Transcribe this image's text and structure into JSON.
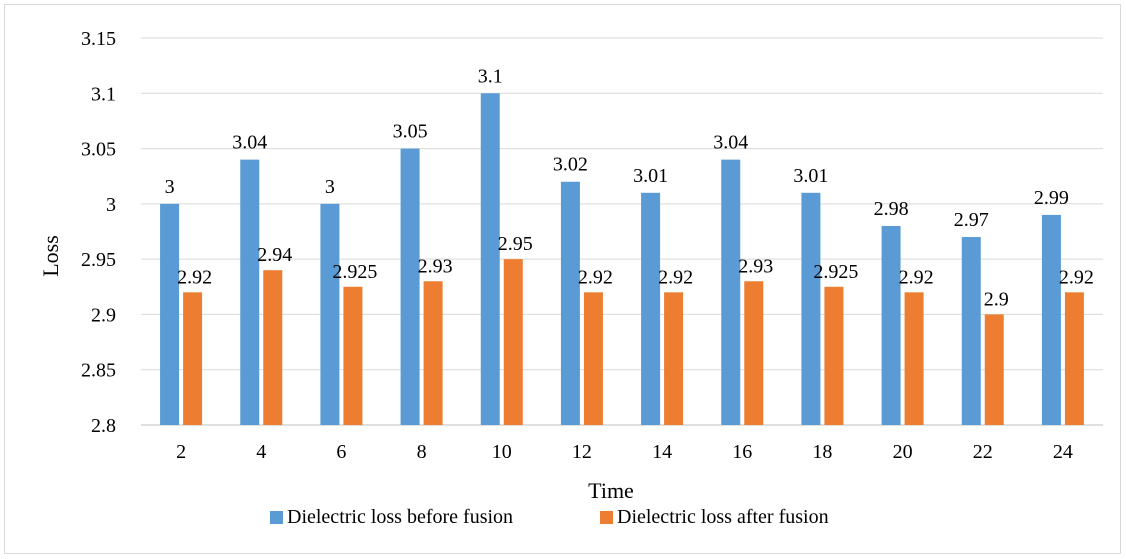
{
  "chart_data": {
    "type": "bar",
    "title": "",
    "xlabel": "Time",
    "ylabel": "Loss",
    "ylim": [
      2.8,
      3.15
    ],
    "y_ticks": [
      2.8,
      2.85,
      2.9,
      2.95,
      3,
      3.05,
      3.1,
      3.15
    ],
    "categories": [
      "2",
      "4",
      "6",
      "8",
      "10",
      "12",
      "14",
      "16",
      "18",
      "20",
      "22",
      "24"
    ],
    "series": [
      {
        "name": "Dielectric loss before fusion",
        "color": "#5b9bd5",
        "values": [
          3,
          3.04,
          3,
          3.05,
          3.1,
          3.02,
          3.01,
          3.04,
          3.01,
          2.98,
          2.97,
          2.99
        ]
      },
      {
        "name": "Dielectric loss after fusion",
        "color": "#ed7d31",
        "values": [
          2.92,
          2.94,
          2.925,
          2.93,
          2.95,
          2.92,
          2.92,
          2.93,
          2.925,
          2.92,
          2.9,
          2.92
        ]
      }
    ],
    "grid": true,
    "legend_position": "bottom"
  }
}
